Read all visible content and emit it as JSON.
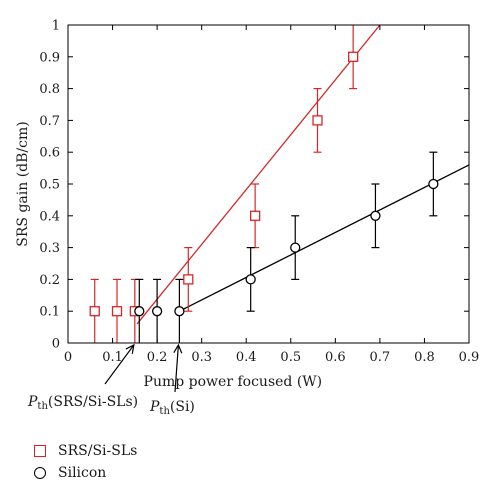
{
  "chart_data": {
    "type": "scatter",
    "xlabel": "Pump power focused (W)",
    "ylabel": "SRS gain (dB/cm)",
    "xlim": [
      0,
      0.9
    ],
    "ylim": [
      0,
      1
    ],
    "x_ticks": [
      "0",
      "0.1",
      "0.2",
      "0.3",
      "0.4",
      "0.5",
      "0.6",
      "0.7",
      "0.8",
      "0.9"
    ],
    "y_ticks": [
      "0",
      "0.1",
      "0.2",
      "0.3",
      "0.4",
      "0.5",
      "0.6",
      "0.7",
      "0.8",
      "0.9",
      "1"
    ],
    "series": [
      {
        "name": "SRS/Si-SLs",
        "color": "#d62728",
        "marker": "square",
        "points": [
          {
            "x": 0.06,
            "y": 0.1,
            "err": 0.1
          },
          {
            "x": 0.11,
            "y": 0.1,
            "err": 0.1
          },
          {
            "x": 0.15,
            "y": 0.1,
            "err": 0.1
          },
          {
            "x": 0.27,
            "y": 0.2,
            "err": 0.1
          },
          {
            "x": 0.42,
            "y": 0.4,
            "err": 0.1
          },
          {
            "x": 0.56,
            "y": 0.7,
            "err": 0.1
          },
          {
            "x": 0.64,
            "y": 0.9,
            "err": 0.1
          }
        ],
        "fit": [
          [
            0.155,
            0.06
          ],
          [
            0.7,
            1.0
          ]
        ]
      },
      {
        "name": "Silicon",
        "color": "#000000",
        "marker": "circle",
        "points": [
          {
            "x": 0.16,
            "y": 0.1,
            "err": 0.1
          },
          {
            "x": 0.2,
            "y": 0.1,
            "err": 0.1
          },
          {
            "x": 0.25,
            "y": 0.1,
            "err": 0.1
          },
          {
            "x": 0.41,
            "y": 0.2,
            "err": 0.1
          },
          {
            "x": 0.51,
            "y": 0.3,
            "err": 0.1
          },
          {
            "x": 0.69,
            "y": 0.4,
            "err": 0.1
          },
          {
            "x": 0.82,
            "y": 0.5,
            "err": 0.1
          }
        ],
        "fit": [
          [
            0.25,
            0.1
          ],
          [
            0.9,
            0.56
          ]
        ]
      }
    ],
    "annotations": [
      {
        "base": "P",
        "sub": "th",
        "rest": "(SRS/Si-SLs)",
        "x": 0.15,
        "y": 0
      },
      {
        "base": "P",
        "sub": "th",
        "rest": "(Si)",
        "x": 0.25,
        "y": 0
      }
    ],
    "legend": [
      "SRS/Si-SLs",
      "Silicon"
    ]
  }
}
